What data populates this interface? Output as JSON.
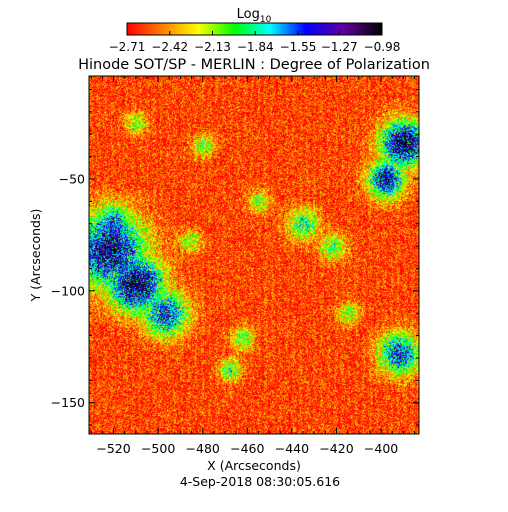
{
  "chart_data": {
    "type": "heatmap",
    "title": "Hinode SOT/SP - MERLIN : Degree of Polarization",
    "colorbar": {
      "label_main": "Log",
      "label_sub": "10",
      "ticks": [
        -2.71,
        -2.42,
        -2.13,
        -1.84,
        -1.55,
        -1.27,
        -0.98
      ],
      "tick_labels": [
        "−2.71",
        "−2.42",
        "−2.13",
        "−1.84",
        "−1.55",
        "−1.27",
        "−0.98"
      ],
      "range": [
        -2.71,
        -0.98
      ],
      "colormap": [
        "#ff0000",
        "#ff8000",
        "#ffff00",
        "#00ff00",
        "#00ffff",
        "#0000ff",
        "#6000a0",
        "#000000"
      ]
    },
    "xlabel": "X (Arcseconds)",
    "ylabel": "Y (Arcseconds)",
    "x_ticks": [
      -520,
      -500,
      -480,
      -460,
      -440,
      -420,
      -400
    ],
    "x_tick_labels": [
      "−520",
      "−500",
      "−480",
      "−460",
      "−440",
      "−420",
      "−400"
    ],
    "y_ticks": [
      -50,
      -100,
      -150
    ],
    "y_tick_labels": [
      "−50",
      "−100",
      "−150"
    ],
    "xlim": [
      -531,
      -383
    ],
    "ylim": [
      -164,
      -4
    ],
    "background_level": -2.62,
    "plage_regions": [
      {
        "x": -522,
        "y": -82,
        "spread": 16,
        "level": -1.25
      },
      {
        "x": -510,
        "y": -97,
        "spread": 12,
        "level": -1.1
      },
      {
        "x": -497,
        "y": -110,
        "spread": 10,
        "level": -1.5
      },
      {
        "x": -520,
        "y": -70,
        "spread": 9,
        "level": -1.6
      },
      {
        "x": -390,
        "y": -34,
        "spread": 10,
        "level": -1.1
      },
      {
        "x": -398,
        "y": -50,
        "spread": 8,
        "level": -1.3
      },
      {
        "x": -392,
        "y": -128,
        "spread": 9,
        "level": -1.5
      },
      {
        "x": -435,
        "y": -70,
        "spread": 7,
        "level": -1.9
      },
      {
        "x": -422,
        "y": -80,
        "spread": 6,
        "level": -2.0
      },
      {
        "x": -462,
        "y": -121,
        "spread": 5,
        "level": -2.0
      },
      {
        "x": -468,
        "y": -135,
        "spread": 5,
        "level": -2.0
      },
      {
        "x": -455,
        "y": -60,
        "spread": 5,
        "level": -2.1
      },
      {
        "x": -480,
        "y": -35,
        "spread": 5,
        "level": -2.1
      },
      {
        "x": -415,
        "y": -110,
        "spread": 5,
        "level": -2.1
      },
      {
        "x": -486,
        "y": -78,
        "spread": 5,
        "level": -2.1
      },
      {
        "x": -510,
        "y": -25,
        "spread": 5,
        "level": -2.1
      }
    ],
    "grid": false,
    "legend": "colorbar top"
  },
  "footer": {
    "timestamp": "4-Sep-2018 08:30:05.616"
  }
}
